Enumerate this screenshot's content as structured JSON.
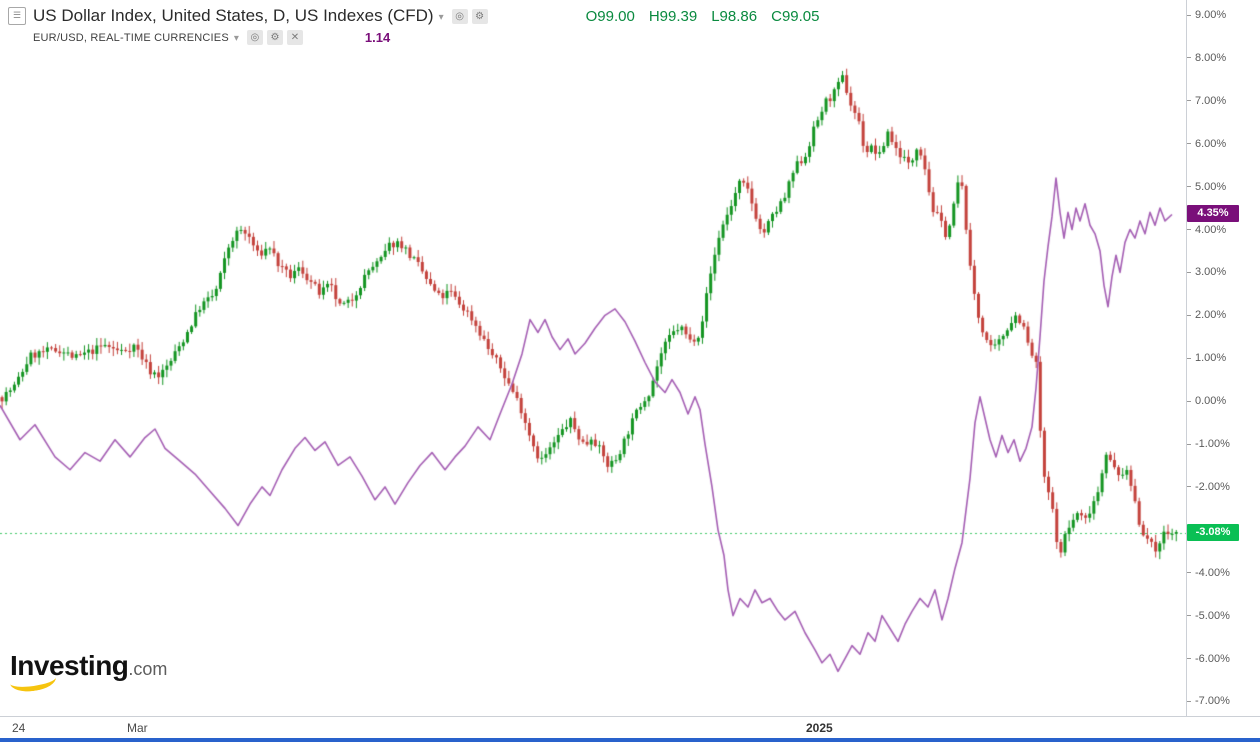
{
  "header": {
    "symbol_row": {
      "title": "US Dollar Index, United States, D, US Indexes (CFD)",
      "ohlc": {
        "o": "O99.00",
        "h": "H99.39",
        "l": "L98.86",
        "c": "C99.05",
        "color": "#0a8a3f"
      }
    },
    "compare_row": {
      "title": "EUR/USD, REAL-TIME CURRENCIES",
      "value": "1.14",
      "value_color": "#7a0f7a"
    },
    "icons": {
      "burger": "☰",
      "caret": "▾",
      "target": "◎",
      "gear": "⚙",
      "close": "✕"
    }
  },
  "logo": {
    "brand": "Investing",
    "tld": ".com",
    "swoosh_color": "#f6c40f"
  },
  "footer": {
    "bar_color": "#2962cc"
  },
  "chart_data": {
    "type": "candlestick+line",
    "background": "#ffffff",
    "y_axis": {
      "ylim": [
        -7.34,
        9.35
      ],
      "ticks": [
        {
          "v": 9,
          "label": "9.00%"
        },
        {
          "v": 8,
          "label": "8.00%"
        },
        {
          "v": 7,
          "label": "7.00%"
        },
        {
          "v": 6,
          "label": "6.00%"
        },
        {
          "v": 5,
          "label": "5.00%"
        },
        {
          "v": 4,
          "label": "4.00%"
        },
        {
          "v": 3,
          "label": "3.00%"
        },
        {
          "v": 2,
          "label": "2.00%"
        },
        {
          "v": 1,
          "label": "1.00%"
        },
        {
          "v": 0,
          "label": "0.00%"
        },
        {
          "v": -1,
          "label": "-1.00%"
        },
        {
          "v": -2,
          "label": "-2.00%"
        },
        {
          "v": -3,
          "label": "-3.00%"
        },
        {
          "v": -4,
          "label": "-4.00%"
        },
        {
          "v": -5,
          "label": "-5.00%"
        },
        {
          "v": -6,
          "label": "-6.00%"
        },
        {
          "v": -7,
          "label": "-7.00%"
        }
      ]
    },
    "x_axis": {
      "labels": [
        {
          "x": 12,
          "label": "24",
          "bold": false
        },
        {
          "x": 127,
          "label": "Mar",
          "bold": false
        },
        {
          "x": 806,
          "label": "2025",
          "bold": true
        }
      ]
    },
    "series": [
      {
        "name": "US Dollar Index",
        "type": "candlestick",
        "unit": "percent-change",
        "up_color": "#149522",
        "down_color": "#c4423c",
        "last_value": -3.08,
        "last_label": "-3.08%",
        "badge_color": "#0abf54",
        "dotted_line_color": "#43cb6a",
        "close_anchors": [
          [
            0,
            0.05
          ],
          [
            15,
            0.35
          ],
          [
            30,
            1.05
          ],
          [
            45,
            1.15
          ],
          [
            60,
            1.2
          ],
          [
            75,
            1.0
          ],
          [
            90,
            1.15
          ],
          [
            105,
            1.3
          ],
          [
            120,
            1.15
          ],
          [
            135,
            1.3
          ],
          [
            150,
            0.7
          ],
          [
            160,
            0.6
          ],
          [
            170,
            0.9
          ],
          [
            185,
            1.5
          ],
          [
            200,
            2.2
          ],
          [
            215,
            2.5
          ],
          [
            230,
            3.7
          ],
          [
            240,
            4.0
          ],
          [
            250,
            3.8
          ],
          [
            258,
            3.4
          ],
          [
            270,
            3.6
          ],
          [
            280,
            3.1
          ],
          [
            290,
            2.9
          ],
          [
            300,
            3.1
          ],
          [
            310,
            2.8
          ],
          [
            320,
            2.5
          ],
          [
            330,
            2.7
          ],
          [
            340,
            2.2
          ],
          [
            350,
            2.3
          ],
          [
            360,
            2.7
          ],
          [
            370,
            3.1
          ],
          [
            380,
            3.25
          ],
          [
            390,
            3.65
          ],
          [
            400,
            3.7
          ],
          [
            410,
            3.4
          ],
          [
            420,
            3.1
          ],
          [
            430,
            2.7
          ],
          [
            440,
            2.4
          ],
          [
            450,
            2.55
          ],
          [
            460,
            2.25
          ],
          [
            470,
            2.0
          ],
          [
            480,
            1.6
          ],
          [
            490,
            1.15
          ],
          [
            500,
            0.8
          ],
          [
            510,
            0.35
          ],
          [
            520,
            -0.1
          ],
          [
            530,
            -0.8
          ],
          [
            540,
            -1.4
          ],
          [
            548,
            -1.2
          ],
          [
            555,
            -0.95
          ],
          [
            562,
            -0.7
          ],
          [
            570,
            -0.45
          ],
          [
            578,
            -0.8
          ],
          [
            585,
            -1.05
          ],
          [
            592,
            -0.8
          ],
          [
            600,
            -1.15
          ],
          [
            608,
            -1.5
          ],
          [
            615,
            -1.4
          ],
          [
            622,
            -1.05
          ],
          [
            630,
            -0.6
          ],
          [
            640,
            -0.1
          ],
          [
            650,
            0.25
          ],
          [
            660,
            1.05
          ],
          [
            670,
            1.5
          ],
          [
            680,
            1.75
          ],
          [
            690,
            1.4
          ],
          [
            700,
            1.6
          ],
          [
            710,
            2.9
          ],
          [
            720,
            3.95
          ],
          [
            730,
            4.5
          ],
          [
            740,
            5.1
          ],
          [
            748,
            4.9
          ],
          [
            755,
            4.4
          ],
          [
            762,
            3.85
          ],
          [
            770,
            4.2
          ],
          [
            778,
            4.5
          ],
          [
            785,
            4.75
          ],
          [
            795,
            5.45
          ],
          [
            805,
            5.7
          ],
          [
            815,
            6.4
          ],
          [
            825,
            6.95
          ],
          [
            835,
            7.2
          ],
          [
            843,
            7.55
          ],
          [
            850,
            6.95
          ],
          [
            858,
            6.6
          ],
          [
            865,
            5.8
          ],
          [
            872,
            5.9
          ],
          [
            880,
            5.7
          ],
          [
            888,
            6.3
          ],
          [
            895,
            5.9
          ],
          [
            903,
            5.7
          ],
          [
            910,
            5.45
          ],
          [
            918,
            6.05
          ],
          [
            925,
            5.45
          ],
          [
            932,
            4.5
          ],
          [
            940,
            4.2
          ],
          [
            947,
            3.85
          ],
          [
            952,
            4.3
          ],
          [
            958,
            5.1
          ],
          [
            963,
            4.9
          ],
          [
            970,
            3.1
          ],
          [
            978,
            2.0
          ],
          [
            985,
            1.5
          ],
          [
            992,
            1.15
          ],
          [
            1000,
            1.4
          ],
          [
            1008,
            1.75
          ],
          [
            1015,
            2.0
          ],
          [
            1022,
            1.85
          ],
          [
            1030,
            1.15
          ],
          [
            1036,
            0.9
          ],
          [
            1040,
            -0.6
          ],
          [
            1045,
            -2.0
          ],
          [
            1050,
            -2.2
          ],
          [
            1055,
            -2.9
          ],
          [
            1060,
            -3.7
          ],
          [
            1065,
            -3.1
          ],
          [
            1070,
            -2.9
          ],
          [
            1078,
            -2.6
          ],
          [
            1085,
            -2.8
          ],
          [
            1092,
            -2.4
          ],
          [
            1100,
            -2.0
          ],
          [
            1105,
            -1.1
          ],
          [
            1110,
            -1.4
          ],
          [
            1118,
            -1.75
          ],
          [
            1125,
            -1.6
          ],
          [
            1132,
            -2.0
          ],
          [
            1140,
            -2.9
          ],
          [
            1148,
            -3.25
          ],
          [
            1155,
            -3.5
          ],
          [
            1162,
            -3.1
          ],
          [
            1170,
            -3.08
          ]
        ]
      },
      {
        "name": "EUR/USD",
        "type": "line",
        "unit": "percent-change",
        "color": "#a55fb4",
        "last_value": 4.35,
        "last_label": "4.35%",
        "badge_color": "#7a0f7a",
        "points": [
          [
            0,
            -0.1
          ],
          [
            20,
            -0.9
          ],
          [
            35,
            -0.55
          ],
          [
            55,
            -1.3
          ],
          [
            70,
            -1.6
          ],
          [
            85,
            -1.2
          ],
          [
            100,
            -1.4
          ],
          [
            115,
            -0.9
          ],
          [
            130,
            -1.3
          ],
          [
            145,
            -0.85
          ],
          [
            155,
            -0.65
          ],
          [
            165,
            -1.1
          ],
          [
            180,
            -1.4
          ],
          [
            195,
            -1.7
          ],
          [
            210,
            -2.1
          ],
          [
            225,
            -2.5
          ],
          [
            238,
            -2.9
          ],
          [
            250,
            -2.4
          ],
          [
            262,
            -2.0
          ],
          [
            270,
            -2.2
          ],
          [
            282,
            -1.6
          ],
          [
            295,
            -1.1
          ],
          [
            305,
            -0.85
          ],
          [
            315,
            -1.15
          ],
          [
            325,
            -0.95
          ],
          [
            338,
            -1.5
          ],
          [
            350,
            -1.3
          ],
          [
            362,
            -1.75
          ],
          [
            375,
            -2.3
          ],
          [
            385,
            -2.0
          ],
          [
            395,
            -2.4
          ],
          [
            408,
            -1.9
          ],
          [
            420,
            -1.5
          ],
          [
            432,
            -1.2
          ],
          [
            445,
            -1.6
          ],
          [
            455,
            -1.3
          ],
          [
            465,
            -1.05
          ],
          [
            478,
            -0.6
          ],
          [
            490,
            -0.9
          ],
          [
            500,
            -0.3
          ],
          [
            512,
            0.4
          ],
          [
            522,
            1.1
          ],
          [
            530,
            1.9
          ],
          [
            538,
            1.6
          ],
          [
            545,
            1.9
          ],
          [
            552,
            1.5
          ],
          [
            560,
            1.2
          ],
          [
            568,
            1.45
          ],
          [
            575,
            1.1
          ],
          [
            585,
            1.35
          ],
          [
            595,
            1.7
          ],
          [
            605,
            2.0
          ],
          [
            615,
            2.15
          ],
          [
            625,
            1.85
          ],
          [
            635,
            1.4
          ],
          [
            645,
            0.9
          ],
          [
            655,
            0.45
          ],
          [
            665,
            0.2
          ],
          [
            672,
            0.5
          ],
          [
            680,
            0.2
          ],
          [
            688,
            -0.3
          ],
          [
            695,
            0.1
          ],
          [
            700,
            -0.2
          ],
          [
            705,
            -1.0
          ],
          [
            712,
            -2.0
          ],
          [
            718,
            -3.0
          ],
          [
            724,
            -3.6
          ],
          [
            728,
            -4.4
          ],
          [
            733,
            -5.0
          ],
          [
            740,
            -4.6
          ],
          [
            748,
            -4.8
          ],
          [
            755,
            -4.4
          ],
          [
            762,
            -4.7
          ],
          [
            770,
            -4.6
          ],
          [
            778,
            -4.9
          ],
          [
            785,
            -5.1
          ],
          [
            795,
            -4.9
          ],
          [
            805,
            -5.4
          ],
          [
            815,
            -5.8
          ],
          [
            822,
            -6.1
          ],
          [
            830,
            -5.9
          ],
          [
            838,
            -6.3
          ],
          [
            845,
            -6.0
          ],
          [
            852,
            -5.7
          ],
          [
            860,
            -5.9
          ],
          [
            868,
            -5.4
          ],
          [
            875,
            -5.6
          ],
          [
            882,
            -5.0
          ],
          [
            890,
            -5.3
          ],
          [
            898,
            -5.6
          ],
          [
            905,
            -5.2
          ],
          [
            912,
            -4.9
          ],
          [
            920,
            -4.6
          ],
          [
            928,
            -4.8
          ],
          [
            935,
            -4.4
          ],
          [
            942,
            -5.1
          ],
          [
            948,
            -4.6
          ],
          [
            955,
            -3.9
          ],
          [
            962,
            -3.3
          ],
          [
            970,
            -1.8
          ],
          [
            975,
            -0.5
          ],
          [
            980,
            0.1
          ],
          [
            985,
            -0.4
          ],
          [
            990,
            -0.9
          ],
          [
            996,
            -1.3
          ],
          [
            1002,
            -0.8
          ],
          [
            1008,
            -1.2
          ],
          [
            1014,
            -0.9
          ],
          [
            1020,
            -1.4
          ],
          [
            1026,
            -1.1
          ],
          [
            1032,
            -0.6
          ],
          [
            1036,
            0.3
          ],
          [
            1040,
            1.5
          ],
          [
            1044,
            2.8
          ],
          [
            1048,
            3.6
          ],
          [
            1052,
            4.3
          ],
          [
            1056,
            5.2
          ],
          [
            1060,
            4.4
          ],
          [
            1064,
            3.8
          ],
          [
            1068,
            4.4
          ],
          [
            1072,
            4.0
          ],
          [
            1076,
            4.5
          ],
          [
            1080,
            4.2
          ],
          [
            1085,
            4.6
          ],
          [
            1090,
            4.1
          ],
          [
            1095,
            3.9
          ],
          [
            1100,
            3.5
          ],
          [
            1104,
            2.7
          ],
          [
            1108,
            2.2
          ],
          [
            1112,
            2.9
          ],
          [
            1116,
            3.4
          ],
          [
            1120,
            3.0
          ],
          [
            1125,
            3.7
          ],
          [
            1130,
            4.0
          ],
          [
            1135,
            3.8
          ],
          [
            1140,
            4.2
          ],
          [
            1145,
            3.9
          ],
          [
            1150,
            4.4
          ],
          [
            1155,
            4.1
          ],
          [
            1160,
            4.5
          ],
          [
            1165,
            4.2
          ],
          [
            1172,
            4.35
          ]
        ]
      }
    ]
  }
}
